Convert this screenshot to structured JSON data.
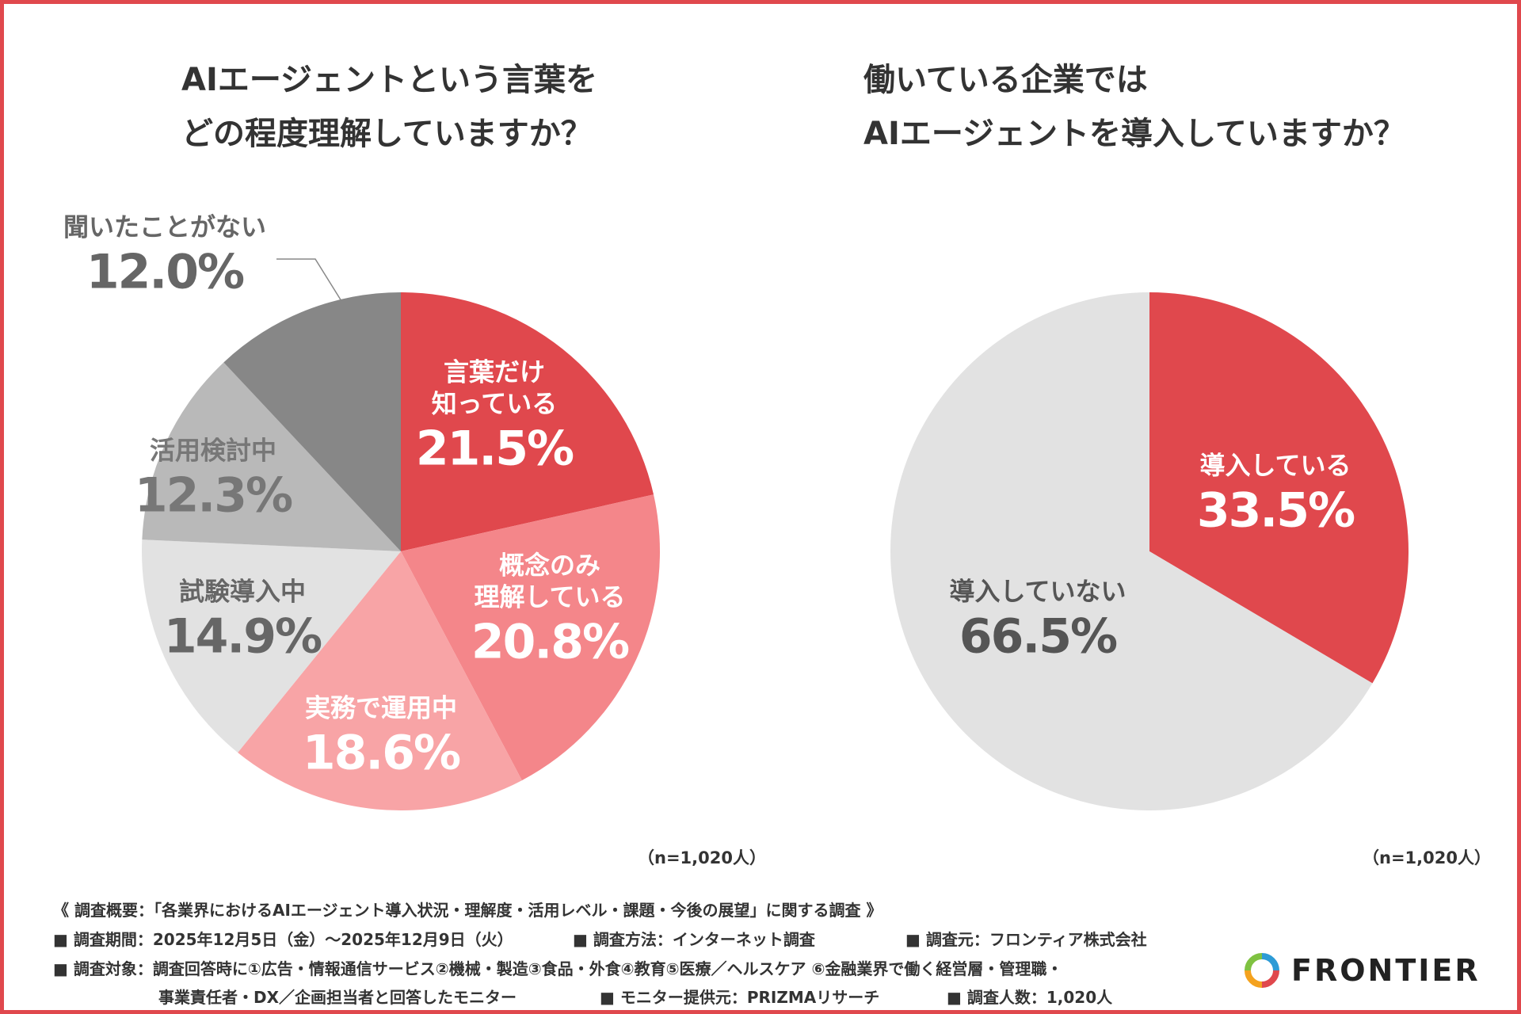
{
  "chart_data": [
    {
      "type": "pie",
      "title": "AIエージェントという言葉を\nどの程度理解していますか？",
      "categories": [
        "言葉だけ\n知っている",
        "概念のみ\n理解している",
        "実務で運用中",
        "試験導入中",
        "活用検討中",
        "聞いたことがない"
      ],
      "values": [
        21.5,
        20.8,
        18.6,
        14.9,
        12.3,
        12.0
      ],
      "value_labels": [
        "21.5%",
        "20.8%",
        "18.6%",
        "14.9%",
        "12.3%",
        "12.0%"
      ],
      "colors": [
        "#e0484d",
        "#f4868a",
        "#f8a4a6",
        "#e2e2e2",
        "#b9b9b9",
        "#878787"
      ],
      "note": "（n=1,020人）"
    },
    {
      "type": "pie",
      "title": "働いている企業では\nAIエージェントを導入していますか？",
      "categories": [
        "導入している",
        "導入していない"
      ],
      "values": [
        33.5,
        66.5
      ],
      "value_labels": [
        "33.5%",
        "66.5%"
      ],
      "colors": [
        "#e0484d",
        "#e2e2e2"
      ],
      "note": "（n=1,020人）"
    }
  ],
  "footer": [
    "《 調査概要：「各業界におけるAIエージェント導入状況・理解度・活用レベル・課題・今後の展望」に関する調査 》",
    "■ 調査期間：2025年12月5日（金）〜2025年12月9日（火）",
    "■ 調査方法：インターネット調査",
    "■ 調査元：フロンティア株式会社",
    "■ 調査対象：調査回答時に①広告・情報通信サービス②機械・製造③食品・外食④教育⑤医療／ヘルスケア ⑥金融業界で働く経営層・管理職・",
    "事業責任者・DX／企画担当者と回答したモニター",
    "■ モニター提供元：PRIZMAリサーチ",
    "■ 調査人数：1,020人"
  ],
  "logo": "FRONTIER"
}
